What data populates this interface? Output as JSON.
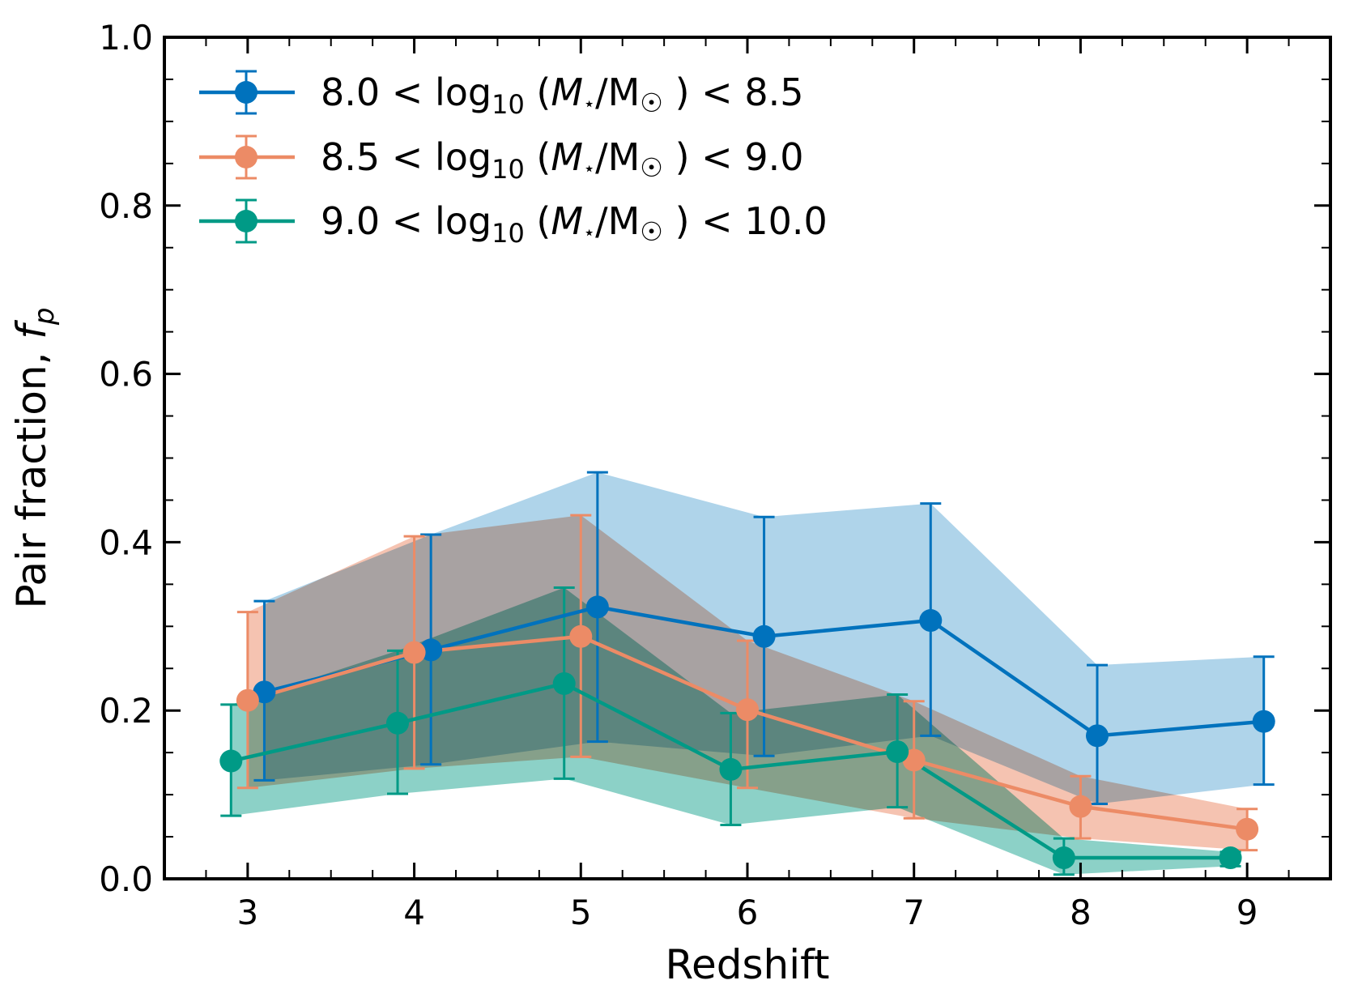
{
  "chart_data": {
    "type": "line",
    "title": "",
    "xlabel": "Redshift",
    "ylabel_main": "Pair fraction, ",
    "ylabel_symbol": "f",
    "ylabel_subscript": "p",
    "xlim": [
      2.5,
      9.5
    ],
    "ylim": [
      0.0,
      1.0
    ],
    "xticks": [
      3,
      4,
      5,
      6,
      7,
      8,
      9
    ],
    "xtick_labels": [
      "3",
      "4",
      "5",
      "6",
      "7",
      "8",
      "9"
    ],
    "yticks": [
      0.0,
      0.2,
      0.4,
      0.6,
      0.8,
      1.0
    ],
    "ytick_labels": [
      "0.0",
      "0.2",
      "0.4",
      "0.6",
      "0.8",
      "1.0"
    ],
    "legend_position": "top-left",
    "grid": false,
    "series": [
      {
        "name": "8.0 < log10 (M⋆/M☉) < 8.5",
        "legend": {
          "low": "8.0",
          "high": "8.5"
        },
        "color": "#0072bd",
        "band_color": "#a6cfe8",
        "x": [
          3.1,
          4.1,
          5.1,
          6.1,
          7.1,
          8.1,
          9.1
        ],
        "y": [
          0.222,
          0.272,
          0.323,
          0.288,
          0.307,
          0.17,
          0.187
        ],
        "y_lower": [
          0.117,
          0.136,
          0.163,
          0.146,
          0.17,
          0.089,
          0.112
        ],
        "y_upper": [
          0.33,
          0.409,
          0.483,
          0.43,
          0.446,
          0.254,
          0.264
        ]
      },
      {
        "name": "8.5 < log10 (M⋆/M☉) < 9.0",
        "legend": {
          "low": "8.5",
          "high": "9.0"
        },
        "color": "#ec8b66",
        "band_color": "#f4bda8",
        "x": [
          3.0,
          4.0,
          5.0,
          6.0,
          7.0,
          8.0,
          9.0
        ],
        "y": [
          0.212,
          0.269,
          0.288,
          0.201,
          0.141,
          0.086,
          0.059
        ],
        "y_lower": [
          0.108,
          0.131,
          0.145,
          0.108,
          0.072,
          0.048,
          0.034
        ],
        "y_upper": [
          0.317,
          0.407,
          0.432,
          0.283,
          0.211,
          0.122,
          0.083
        ]
      },
      {
        "name": "9.0 < log10 (M⋆/M☉) < 10.0",
        "legend": {
          "low": "9.0",
          "high": "10.0"
        },
        "color": "#009a86",
        "band_color": "#7fccc1",
        "x": [
          2.9,
          3.9,
          4.9,
          5.9,
          6.9,
          7.9,
          8.9
        ],
        "y": [
          0.14,
          0.185,
          0.232,
          0.13,
          0.151,
          0.025,
          0.025
        ],
        "y_lower": [
          0.075,
          0.101,
          0.119,
          0.064,
          0.085,
          0.005,
          0.015
        ],
        "y_upper": [
          0.207,
          0.271,
          0.346,
          0.197,
          0.219,
          0.048,
          0.032
        ]
      }
    ]
  }
}
